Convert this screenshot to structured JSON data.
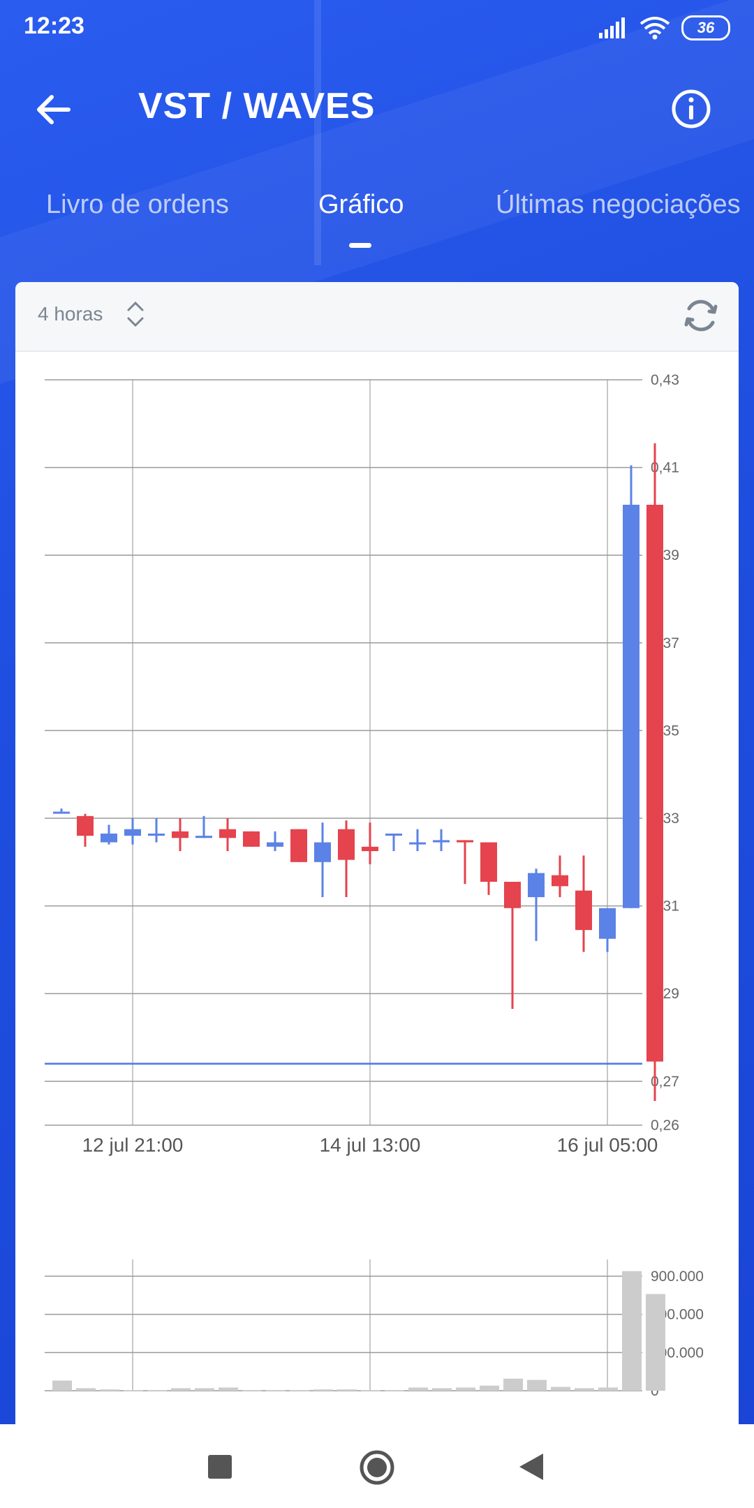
{
  "status_bar": {
    "time": "12:23",
    "battery": "36"
  },
  "header": {
    "title": "VST / WAVES"
  },
  "tabs": [
    {
      "label": "Livro de ordens",
      "active": false
    },
    {
      "label": "Gráfico",
      "active": true
    },
    {
      "label": "Últimas negociações",
      "active": false
    }
  ],
  "chart_toolbar": {
    "interval": "4 horas"
  },
  "colors": {
    "up": "#5b82e6",
    "down": "#e5434d",
    "volume": "#cccccc",
    "hero_bg": "#1f4fe0",
    "price_line": "#4a74f0"
  },
  "chart_data": [
    {
      "type": "candlestick",
      "price_axis_ticks": [
        "0,43",
        "0,41",
        "0,39",
        "0,37",
        "0,35",
        "0,33",
        "0,31",
        "0,29",
        "0,27",
        "0,26"
      ],
      "time_axis_labels": [
        "12 jul 21:00",
        "14 jul 13:00",
        "16 jul 05:00"
      ],
      "grid": true,
      "current_price_line": 0.274,
      "candles": [
        {
          "o": 0.3315,
          "h": 0.3322,
          "l": 0.3315,
          "c": 0.3315
        },
        {
          "o": 0.3305,
          "h": 0.331,
          "l": 0.3235,
          "c": 0.326
        },
        {
          "o": 0.3245,
          "h": 0.3285,
          "l": 0.324,
          "c": 0.3265
        },
        {
          "o": 0.326,
          "h": 0.33,
          "l": 0.324,
          "c": 0.3275
        },
        {
          "o": 0.326,
          "h": 0.33,
          "l": 0.3245,
          "c": 0.3265
        },
        {
          "o": 0.327,
          "h": 0.33,
          "l": 0.3225,
          "c": 0.3255
        },
        {
          "o": 0.3255,
          "h": 0.3305,
          "l": 0.3255,
          "c": 0.326
        },
        {
          "o": 0.3275,
          "h": 0.33,
          "l": 0.3225,
          "c": 0.3255
        },
        {
          "o": 0.327,
          "h": 0.327,
          "l": 0.3235,
          "c": 0.3235
        },
        {
          "o": 0.3235,
          "h": 0.327,
          "l": 0.3225,
          "c": 0.3245
        },
        {
          "o": 0.3275,
          "h": 0.3275,
          "l": 0.32,
          "c": 0.32
        },
        {
          "o": 0.32,
          "h": 0.329,
          "l": 0.312,
          "c": 0.3245
        },
        {
          "o": 0.3275,
          "h": 0.3295,
          "l": 0.312,
          "c": 0.3205
        },
        {
          "o": 0.3235,
          "h": 0.329,
          "l": 0.3195,
          "c": 0.3225
        },
        {
          "o": 0.3265,
          "h": 0.3265,
          "l": 0.3225,
          "c": 0.3265
        },
        {
          "o": 0.3245,
          "h": 0.3275,
          "l": 0.3225,
          "c": 0.3245
        },
        {
          "o": 0.3245,
          "h": 0.3275,
          "l": 0.3225,
          "c": 0.325
        },
        {
          "o": 0.325,
          "h": 0.325,
          "l": 0.315,
          "c": 0.3245
        },
        {
          "o": 0.3245,
          "h": 0.3245,
          "l": 0.3125,
          "c": 0.3155
        },
        {
          "o": 0.3155,
          "h": 0.3155,
          "l": 0.2865,
          "c": 0.3095
        },
        {
          "o": 0.312,
          "h": 0.3185,
          "l": 0.302,
          "c": 0.3175
        },
        {
          "o": 0.317,
          "h": 0.3215,
          "l": 0.312,
          "c": 0.3145
        },
        {
          "o": 0.3135,
          "h": 0.3215,
          "l": 0.2995,
          "c": 0.3045
        },
        {
          "o": 0.3025,
          "h": 0.3095,
          "l": 0.2995,
          "c": 0.3095
        },
        {
          "o": 0.3095,
          "h": 0.4105,
          "l": 0.3095,
          "c": 0.4015
        },
        {
          "o": 0.4015,
          "h": 0.4155,
          "l": 0.2655,
          "c": 0.2745
        }
      ],
      "volume_axis_ticks": [
        "900.000",
        "600.000",
        "300.000",
        "0"
      ],
      "volumes": [
        80000,
        20000,
        10000,
        5000,
        5000,
        20000,
        20000,
        25000,
        5000,
        5000,
        5000,
        10000,
        10000,
        5000,
        5000,
        25000,
        20000,
        25000,
        40000,
        95000,
        85000,
        30000,
        20000,
        25000,
        940000,
        760000
      ]
    }
  ]
}
